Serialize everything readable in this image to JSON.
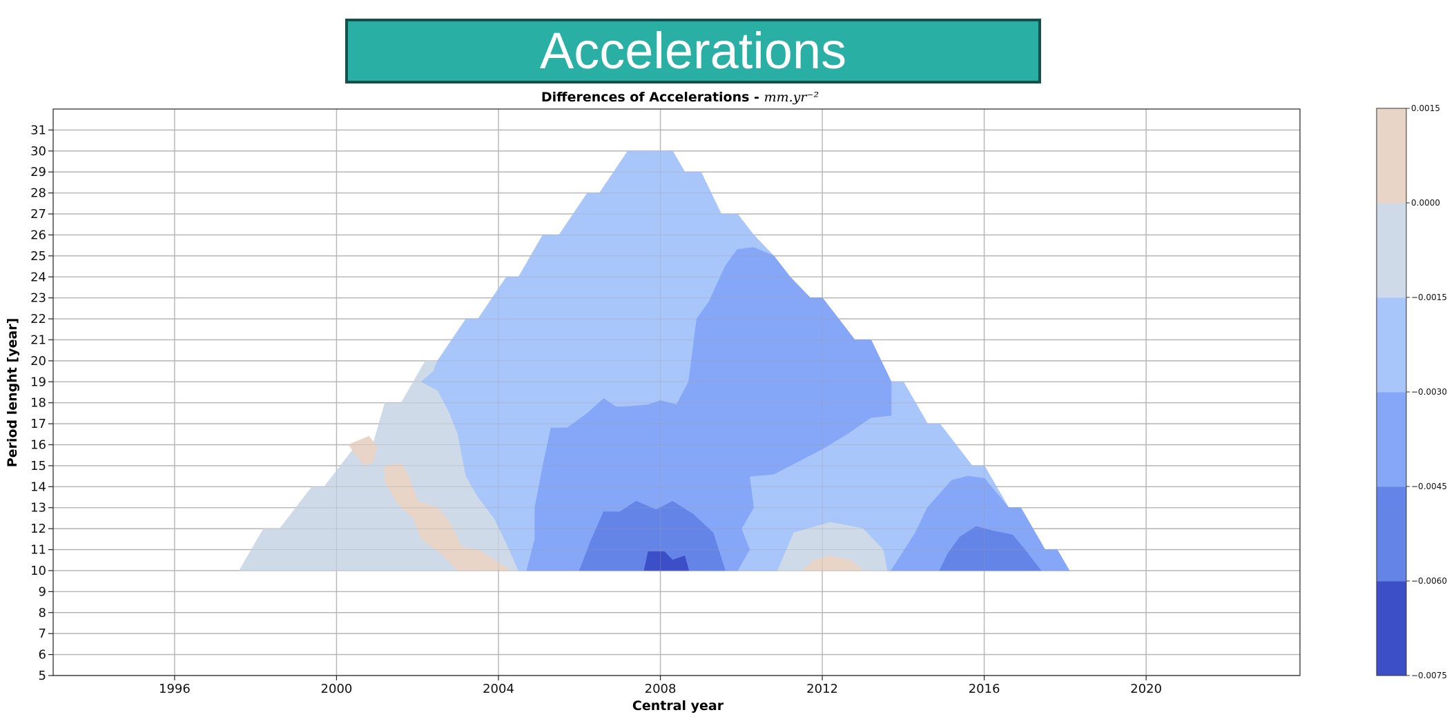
{
  "banner": {
    "title": "Accelerations"
  },
  "colors": {
    "banner_bg": "#29afa3",
    "banner_border": "#14504c",
    "levels": [
      "#3d4fc6",
      "#6584e8",
      "#86a7f7",
      "#a9c6fb",
      "#cfdae8",
      "#e9d5c8"
    ]
  },
  "chart_data": {
    "type": "heatmap",
    "subtype": "filled-contour",
    "title": "Differences of Accelerations - mm.yr⁻²",
    "title_bold": "Differences of Accelerations - ",
    "title_unit": "mm.yr⁻²",
    "xlabel": "Central year",
    "ylabel": "Period lenght [year]",
    "xlim": [
      1993,
      2023.8
    ],
    "ylim": [
      5,
      32
    ],
    "xticks": [
      1996,
      2000,
      2004,
      2008,
      2012,
      2016,
      2020
    ],
    "yticks": [
      5,
      6,
      7,
      8,
      9,
      10,
      11,
      12,
      13,
      14,
      15,
      16,
      17,
      18,
      19,
      20,
      21,
      22,
      23,
      24,
      25,
      26,
      27,
      28,
      29,
      30,
      31
    ],
    "grid": true,
    "colorbar": {
      "levels": [
        -0.0075,
        -0.006,
        -0.0045,
        -0.003,
        -0.0015,
        0.0,
        0.0015
      ],
      "tick_labels": [
        "−0.0075",
        "−0.0060",
        "−0.0045",
        "−0.0030",
        "−0.0015",
        "0.0000",
        "0.0015"
      ]
    },
    "domain_outline": [
      [
        1997.6,
        10
      ],
      [
        1998.2,
        12
      ],
      [
        1998.6,
        12
      ],
      [
        1999.4,
        14
      ],
      [
        1999.7,
        14
      ],
      [
        2000.5,
        16
      ],
      [
        2000.9,
        16
      ],
      [
        2001.2,
        18
      ],
      [
        2001.6,
        18
      ],
      [
        2002.2,
        20
      ],
      [
        2002.5,
        20
      ],
      [
        2003.2,
        22
      ],
      [
        2003.5,
        22
      ],
      [
        2004.2,
        24
      ],
      [
        2004.5,
        24
      ],
      [
        2005.1,
        26
      ],
      [
        2005.5,
        26
      ],
      [
        2006.2,
        28
      ],
      [
        2006.5,
        28
      ],
      [
        2007.2,
        30
      ],
      [
        2008.3,
        30
      ],
      [
        2008.6,
        29
      ],
      [
        2009.0,
        29
      ],
      [
        2009.5,
        27
      ],
      [
        2009.9,
        27
      ],
      [
        2010.3,
        26
      ],
      [
        2010.8,
        25
      ],
      [
        2011.2,
        24
      ],
      [
        2011.7,
        23
      ],
      [
        2012.0,
        23
      ],
      [
        2012.4,
        22
      ],
      [
        2012.8,
        21
      ],
      [
        2013.2,
        21
      ],
      [
        2013.7,
        19
      ],
      [
        2014.0,
        19
      ],
      [
        2014.6,
        17
      ],
      [
        2014.9,
        17
      ],
      [
        2015.7,
        15
      ],
      [
        2016.0,
        15
      ],
      [
        2016.6,
        13
      ],
      [
        2016.9,
        13
      ],
      [
        2017.5,
        11
      ],
      [
        2017.8,
        11
      ],
      [
        2018.1,
        10
      ]
    ],
    "regions": [
      {
        "level": 4,
        "label": "-0.0015 to 0.0000",
        "points": [
          [
            1997.6,
            10
          ],
          [
            1998.2,
            12
          ],
          [
            1998.6,
            12
          ],
          [
            1999.4,
            14
          ],
          [
            1999.7,
            14
          ],
          [
            2000.5,
            16
          ],
          [
            2000.9,
            16
          ],
          [
            2001.2,
            18
          ],
          [
            2001.6,
            18
          ],
          [
            2002.2,
            20
          ],
          [
            2002.5,
            20
          ],
          [
            2002.4,
            19.5
          ],
          [
            2002.1,
            19
          ],
          [
            2002.5,
            18.6
          ],
          [
            2002.8,
            17.5
          ],
          [
            2003.0,
            16.5
          ],
          [
            2003.2,
            14.5
          ],
          [
            2003.5,
            13.5
          ],
          [
            2003.9,
            12.5
          ],
          [
            2004.2,
            11.3
          ],
          [
            2004.5,
            10
          ]
        ]
      },
      {
        "level": 3,
        "label": "-0.0030 to -0.0015",
        "points": [
          [
            2002.5,
            20
          ],
          [
            2003.2,
            22
          ],
          [
            2003.5,
            22
          ],
          [
            2004.2,
            24
          ],
          [
            2004.5,
            24
          ],
          [
            2005.1,
            26
          ],
          [
            2005.5,
            26
          ],
          [
            2006.2,
            28
          ],
          [
            2006.5,
            28
          ],
          [
            2007.2,
            30
          ],
          [
            2008.3,
            30
          ],
          [
            2008.6,
            29
          ],
          [
            2009.0,
            29
          ],
          [
            2009.5,
            27
          ],
          [
            2009.9,
            27
          ],
          [
            2010.3,
            26
          ],
          [
            2010.8,
            25
          ],
          [
            2011.2,
            24
          ],
          [
            2011.7,
            23
          ],
          [
            2012.0,
            23
          ],
          [
            2012.4,
            22
          ],
          [
            2012.8,
            21
          ],
          [
            2013.2,
            21
          ],
          [
            2013.7,
            19
          ],
          [
            2014.0,
            19
          ],
          [
            2014.6,
            17
          ],
          [
            2014.9,
            17
          ],
          [
            2015.7,
            15
          ],
          [
            2016.0,
            15
          ],
          [
            2016.6,
            13
          ],
          [
            2016.9,
            13
          ],
          [
            2017.5,
            11
          ],
          [
            2017.8,
            11
          ],
          [
            2018.1,
            10
          ],
          [
            2004.5,
            10
          ],
          [
            2004.2,
            11.3
          ],
          [
            2003.9,
            12.5
          ],
          [
            2003.5,
            13.5
          ],
          [
            2003.2,
            14.5
          ],
          [
            2003.0,
            16.5
          ],
          [
            2002.8,
            17.5
          ],
          [
            2002.5,
            18.6
          ],
          [
            2002.1,
            19
          ],
          [
            2002.4,
            19.5
          ]
        ]
      },
      {
        "level": 2,
        "label": "-0.0045 to -0.0030",
        "points": [
          [
            2004.7,
            10
          ],
          [
            2004.9,
            11.5
          ],
          [
            2004.9,
            13
          ],
          [
            2005.1,
            15
          ],
          [
            2005.3,
            16.8
          ],
          [
            2005.7,
            16.8
          ],
          [
            2006.2,
            17.5
          ],
          [
            2006.6,
            18.2
          ],
          [
            2006.9,
            17.8
          ],
          [
            2007.1,
            17.8
          ],
          [
            2007.7,
            17.9
          ],
          [
            2008.0,
            18.1
          ],
          [
            2008.4,
            17.9
          ],
          [
            2008.7,
            19
          ],
          [
            2008.8,
            20.5
          ],
          [
            2008.9,
            22
          ],
          [
            2009.2,
            22.8
          ],
          [
            2009.6,
            24.5
          ],
          [
            2009.9,
            25.3
          ],
          [
            2010.3,
            25.4
          ],
          [
            2010.8,
            25
          ],
          [
            2011.2,
            24
          ],
          [
            2011.7,
            23
          ],
          [
            2012.0,
            23
          ],
          [
            2012.4,
            22
          ],
          [
            2012.8,
            21
          ],
          [
            2013.2,
            21
          ],
          [
            2013.7,
            19
          ],
          [
            2013.7,
            17.4
          ],
          [
            2013.2,
            17.3
          ],
          [
            2012.6,
            16.5
          ],
          [
            2012.0,
            15.8
          ],
          [
            2011.4,
            15.2
          ],
          [
            2010.8,
            14.6
          ],
          [
            2010.2,
            14.5
          ],
          [
            2010.3,
            13
          ],
          [
            2010.0,
            12
          ],
          [
            2010.2,
            11
          ],
          [
            2009.9,
            10
          ]
        ]
      },
      {
        "level": 2,
        "label": "-0.0045 to -0.0030",
        "points": [
          [
            2013.7,
            10
          ],
          [
            2014.3,
            11.8
          ],
          [
            2014.6,
            13
          ],
          [
            2015.2,
            14.3
          ],
          [
            2015.6,
            14.5
          ],
          [
            2016.0,
            14.4
          ],
          [
            2016.6,
            13
          ],
          [
            2016.9,
            13
          ],
          [
            2017.5,
            11
          ],
          [
            2017.8,
            11
          ],
          [
            2018.1,
            10
          ]
        ]
      },
      {
        "level": 1,
        "label": "-0.0060 to -0.0045",
        "points": [
          [
            2006.0,
            10
          ],
          [
            2006.3,
            11.5
          ],
          [
            2006.6,
            12.8
          ],
          [
            2007.0,
            12.8
          ],
          [
            2007.4,
            13.3
          ],
          [
            2007.9,
            12.9
          ],
          [
            2008.3,
            13.3
          ],
          [
            2008.8,
            12.7
          ],
          [
            2009.3,
            11.8
          ],
          [
            2009.6,
            10
          ]
        ]
      },
      {
        "level": 1,
        "label": "-0.0060 to -0.0045",
        "points": [
          [
            2014.9,
            10
          ],
          [
            2015.1,
            10.8
          ],
          [
            2015.4,
            11.6
          ],
          [
            2015.8,
            12.1
          ],
          [
            2016.2,
            11.9
          ],
          [
            2016.7,
            11.7
          ],
          [
            2017.0,
            11
          ],
          [
            2017.4,
            10
          ]
        ]
      },
      {
        "level": 0,
        "label": "-0.0075 to -0.0060",
        "points": [
          [
            2007.6,
            10
          ],
          [
            2007.7,
            10.9
          ],
          [
            2008.1,
            10.9
          ],
          [
            2008.3,
            10.5
          ],
          [
            2008.6,
            10.7
          ],
          [
            2008.7,
            10
          ]
        ]
      },
      {
        "level": 5,
        "label": "0.0000 to 0.0015",
        "points": [
          [
            2000.3,
            16
          ],
          [
            2000.8,
            16.4
          ],
          [
            2001.0,
            15.9
          ],
          [
            2000.9,
            15.2
          ],
          [
            2000.7,
            15.0
          ]
        ]
      },
      {
        "level": 5,
        "label": "0.0000 to 0.0015",
        "points": [
          [
            2001.2,
            15
          ],
          [
            2001.6,
            15.1
          ],
          [
            2001.8,
            14.4
          ],
          [
            2002.0,
            13.3
          ],
          [
            2002.5,
            13.0
          ],
          [
            2002.8,
            12.3
          ],
          [
            2003.1,
            11.1
          ],
          [
            2003.5,
            11.0
          ],
          [
            2003.9,
            10.5
          ],
          [
            2004.3,
            10
          ],
          [
            2003.0,
            10
          ],
          [
            2002.6,
            10.8
          ],
          [
            2002.1,
            11.5
          ],
          [
            2001.9,
            12.5
          ],
          [
            2001.5,
            13.2
          ],
          [
            2001.2,
            14.3
          ]
        ]
      },
      {
        "level": 4,
        "label": "-0.0015 to 0.0000",
        "points": [
          [
            2010.9,
            10
          ],
          [
            2011.3,
            11.8
          ],
          [
            2012.2,
            12.3
          ],
          [
            2013.0,
            12.0
          ],
          [
            2013.5,
            11.0
          ],
          [
            2013.6,
            10
          ]
        ]
      },
      {
        "level": 5,
        "label": "0.0000 to 0.0015",
        "points": [
          [
            2011.5,
            10
          ],
          [
            2011.8,
            10.5
          ],
          [
            2012.2,
            10.7
          ],
          [
            2012.7,
            10.5
          ],
          [
            2013.0,
            10
          ]
        ]
      }
    ]
  }
}
